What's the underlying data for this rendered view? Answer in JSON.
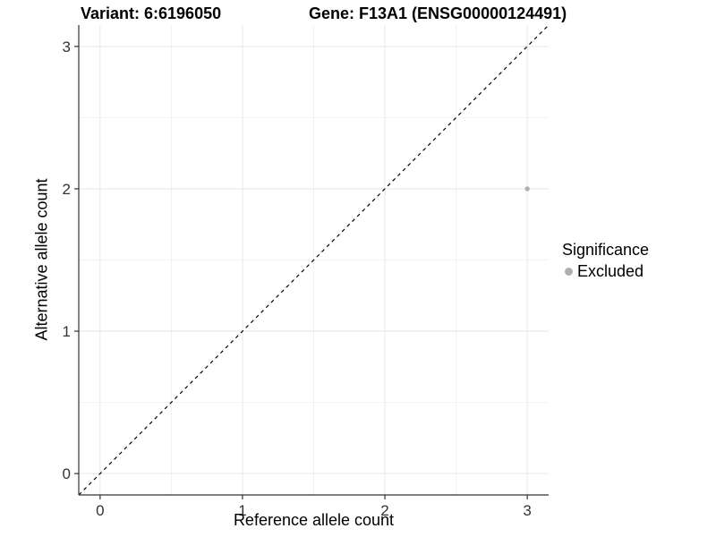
{
  "chart_data": {
    "type": "scatter",
    "title_left": "Variant: 6:6196050",
    "title_right": "Gene: F13A1 (ENSG00000124491)",
    "xlabel": "Reference allele count",
    "ylabel": "Alternative allele count",
    "xlim": [
      -0.15,
      3.15
    ],
    "ylim": [
      -0.15,
      3.15
    ],
    "x_ticks": [
      0,
      1,
      2,
      3
    ],
    "y_ticks": [
      0,
      1,
      2,
      3
    ],
    "grid": true,
    "points": [
      {
        "x": 3,
        "y": 2,
        "series": "Excluded"
      }
    ],
    "reference_line": {
      "type": "identity",
      "style": "dashed",
      "color": "#000000"
    },
    "legend": {
      "title": "Significance",
      "position": "right",
      "items": [
        {
          "label": "Excluded",
          "color": "#b0b0b0",
          "marker": "circle"
        }
      ]
    },
    "colors": {
      "background": "#ffffff",
      "grid_major": "#e6e6e6",
      "grid_minor": "#f2f2f2",
      "axis": "#333333",
      "tick_text": "#333333",
      "point": "#b0b0b0"
    }
  }
}
